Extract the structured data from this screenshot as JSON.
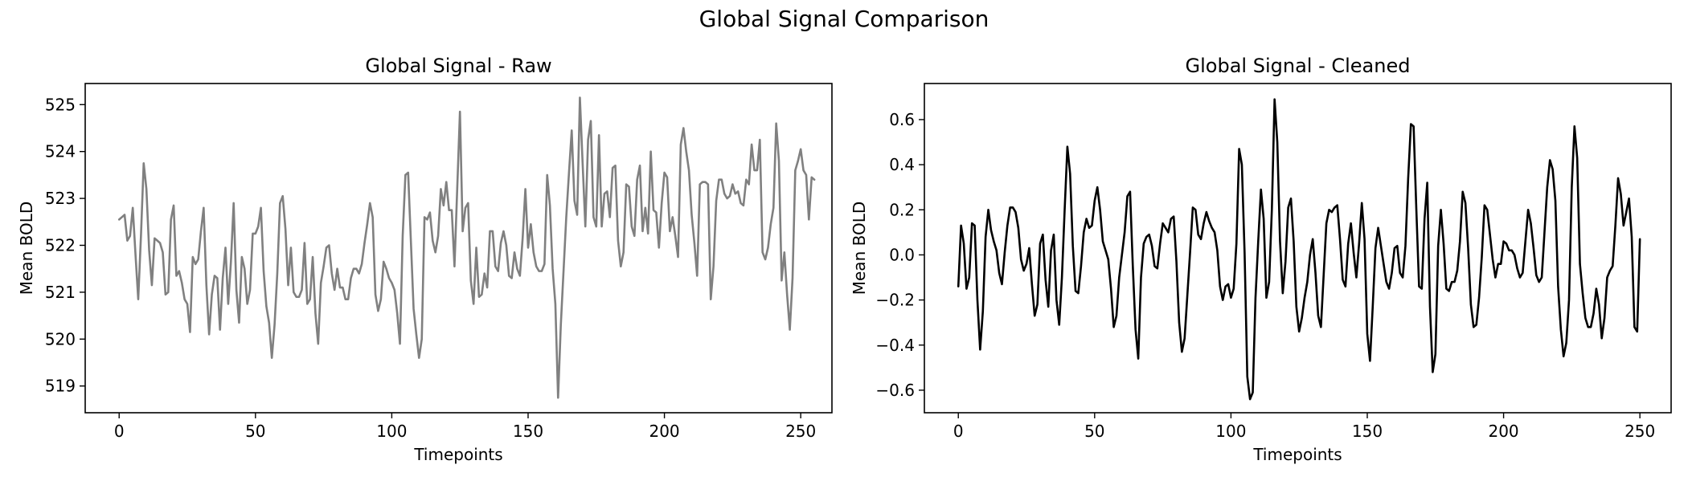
{
  "figure": {
    "title": "Global Signal Comparison"
  },
  "chart_data": [
    {
      "type": "line",
      "title": "Global Signal - Raw",
      "xlabel": "Timepoints",
      "ylabel": "Mean BOLD",
      "xlim": [
        -12.45,
        261.45
      ],
      "ylim": [
        518.43,
        525.45
      ],
      "xticks": [
        0,
        50,
        100,
        150,
        200,
        250
      ],
      "yticks": [
        519,
        520,
        521,
        522,
        523,
        524,
        525
      ],
      "color": "#808080",
      "x_start": 0,
      "x_step": 1,
      "values": [
        522.55,
        522.6,
        522.65,
        522.1,
        522.2,
        522.8,
        521.8,
        520.85,
        522.2,
        523.75,
        523.2,
        521.9,
        521.15,
        522.15,
        522.1,
        522.05,
        521.85,
        520.95,
        521.0,
        522.55,
        522.85,
        521.35,
        521.45,
        521.2,
        520.85,
        520.75,
        520.15,
        521.75,
        521.6,
        521.7,
        522.3,
        522.8,
        521.15,
        520.1,
        520.95,
        521.35,
        521.3,
        520.2,
        521.3,
        521.95,
        520.75,
        521.65,
        522.9,
        521.05,
        520.35,
        521.75,
        521.5,
        520.75,
        521.05,
        522.25,
        522.25,
        522.4,
        522.8,
        521.45,
        520.7,
        520.35,
        519.6,
        520.3,
        521.4,
        522.9,
        523.05,
        522.35,
        521.15,
        521.95,
        521.0,
        520.9,
        520.9,
        521.05,
        522.05,
        520.75,
        520.85,
        521.75,
        520.55,
        519.9,
        521.2,
        521.55,
        521.95,
        522.0,
        521.4,
        521.05,
        521.5,
        521.1,
        521.1,
        520.85,
        520.85,
        521.3,
        521.5,
        521.5,
        521.4,
        521.6,
        522.05,
        522.45,
        522.9,
        522.6,
        520.95,
        520.6,
        520.85,
        521.65,
        521.5,
        521.3,
        521.2,
        521.05,
        520.55,
        519.9,
        522.2,
        523.5,
        523.55,
        522.1,
        520.65,
        520.1,
        519.6,
        520.0,
        522.6,
        522.55,
        522.7,
        522.1,
        521.85,
        522.2,
        523.2,
        522.85,
        523.35,
        522.75,
        522.75,
        521.55,
        523.2,
        524.85,
        522.3,
        522.8,
        522.9,
        521.25,
        520.75,
        521.95,
        520.9,
        520.95,
        521.4,
        521.1,
        522.3,
        522.3,
        521.55,
        521.45,
        522.05,
        522.3,
        522.0,
        521.35,
        521.3,
        521.85,
        521.5,
        521.35,
        522.15,
        523.2,
        521.95,
        522.45,
        521.85,
        521.55,
        521.45,
        521.45,
        521.6,
        523.5,
        522.85,
        521.5,
        520.75,
        518.75,
        520.3,
        521.45,
        522.6,
        523.55,
        524.45,
        522.95,
        522.65,
        525.15,
        523.75,
        522.4,
        524.25,
        524.65,
        522.6,
        522.4,
        524.35,
        522.4,
        523.1,
        523.15,
        522.6,
        523.65,
        523.7,
        522.1,
        521.55,
        521.85,
        523.3,
        523.25,
        522.4,
        522.2,
        523.4,
        523.7,
        522.3,
        522.8,
        522.25,
        524.0,
        522.75,
        522.7,
        521.95,
        522.9,
        523.55,
        523.45,
        522.3,
        522.6,
        522.2,
        521.75,
        524.15,
        524.5,
        524.0,
        523.6,
        522.65,
        522.05,
        521.35,
        523.3,
        523.35,
        523.35,
        523.3,
        520.85,
        521.55,
        522.95,
        523.4,
        523.4,
        523.1,
        523.0,
        523.05,
        523.3,
        523.1,
        523.15,
        522.9,
        522.85,
        523.4,
        523.3,
        524.15,
        523.6,
        523.6,
        524.25,
        521.85,
        521.7,
        521.95,
        522.45,
        522.8,
        524.6,
        523.8,
        521.25,
        521.85,
        520.95,
        520.2,
        521.3,
        523.6,
        523.8,
        524.05,
        523.6,
        523.5,
        522.55,
        523.45,
        523.4
      ]
    },
    {
      "type": "line",
      "title": "Global Signal - Cleaned",
      "xlabel": "Timepoints",
      "ylabel": "Mean BOLD",
      "xlim": [
        -12.45,
        261.45
      ],
      "ylim": [
        -0.7,
        0.76
      ],
      "xticks": [
        0,
        50,
        100,
        150,
        200,
        250
      ],
      "yticks": [
        -0.6,
        -0.4,
        -0.2,
        0.0,
        0.2,
        0.4,
        0.6
      ],
      "ytick_labels": [
        "−0.6",
        "−0.4",
        "−0.2",
        "0.0",
        "0.2",
        "0.4",
        "0.6"
      ],
      "color": "#000000",
      "x_start": 0,
      "x_step": 1,
      "values": [
        -0.14,
        0.13,
        0.05,
        -0.15,
        -0.1,
        0.14,
        0.13,
        -0.2,
        -0.42,
        -0.25,
        0.08,
        0.2,
        0.11,
        0.06,
        0.02,
        -0.08,
        -0.13,
        0.01,
        0.13,
        0.21,
        0.21,
        0.19,
        0.12,
        -0.02,
        -0.07,
        -0.04,
        0.03,
        -0.13,
        -0.27,
        -0.22,
        0.05,
        0.09,
        -0.11,
        -0.23,
        0.02,
        0.09,
        -0.2,
        -0.31,
        -0.1,
        0.2,
        0.48,
        0.36,
        0.04,
        -0.16,
        -0.17,
        -0.05,
        0.1,
        0.16,
        0.12,
        0.13,
        0.24,
        0.3,
        0.2,
        0.06,
        0.02,
        -0.02,
        -0.15,
        -0.32,
        -0.27,
        -0.1,
        0.0,
        0.1,
        0.26,
        0.28,
        -0.05,
        -0.33,
        -0.46,
        -0.1,
        0.05,
        0.08,
        0.09,
        0.04,
        -0.05,
        -0.06,
        0.05,
        0.14,
        0.12,
        0.1,
        0.16,
        0.17,
        -0.03,
        -0.3,
        -0.43,
        -0.37,
        -0.18,
        0.01,
        0.21,
        0.2,
        0.09,
        0.07,
        0.14,
        0.19,
        0.15,
        0.12,
        0.1,
        0.02,
        -0.14,
        -0.2,
        -0.14,
        -0.13,
        -0.19,
        -0.15,
        0.05,
        0.47,
        0.4,
        0.01,
        -0.54,
        -0.64,
        -0.61,
        -0.19,
        0.06,
        0.29,
        0.16,
        -0.19,
        -0.12,
        0.2,
        0.69,
        0.5,
        0.06,
        -0.17,
        -0.03,
        0.21,
        0.25,
        0.06,
        -0.23,
        -0.34,
        -0.28,
        -0.19,
        -0.12,
        0.0,
        0.07,
        -0.08,
        -0.27,
        -0.32,
        -0.09,
        0.14,
        0.2,
        0.19,
        0.21,
        0.22,
        0.07,
        -0.11,
        -0.14,
        0.05,
        0.14,
        0.01,
        -0.1,
        0.05,
        0.23,
        0.07,
        -0.35,
        -0.47,
        -0.23,
        0.03,
        0.12,
        0.04,
        -0.04,
        -0.12,
        -0.15,
        -0.08,
        0.03,
        0.04,
        -0.08,
        -0.1,
        0.04,
        0.34,
        0.58,
        0.57,
        0.2,
        -0.14,
        -0.15,
        0.16,
        0.32,
        -0.23,
        -0.52,
        -0.44,
        0.04,
        0.2,
        0.05,
        -0.15,
        -0.16,
        -0.12,
        -0.12,
        -0.07,
        0.06,
        0.28,
        0.23,
        0.03,
        -0.22,
        -0.32,
        -0.31,
        -0.19,
        -0.01,
        0.22,
        0.2,
        0.09,
        -0.02,
        -0.1,
        -0.04,
        -0.04,
        0.06,
        0.05,
        0.02,
        0.02,
        0.0,
        -0.06,
        -0.1,
        -0.08,
        0.06,
        0.2,
        0.14,
        0.03,
        -0.09,
        -0.12,
        -0.1,
        0.1,
        0.3,
        0.42,
        0.38,
        0.24,
        -0.14,
        -0.33,
        -0.45,
        -0.39,
        -0.2,
        0.3,
        0.57,
        0.43,
        -0.04,
        -0.17,
        -0.28,
        -0.32,
        -0.32,
        -0.26,
        -0.15,
        -0.22,
        -0.37,
        -0.28,
        -0.1,
        -0.07,
        -0.05,
        0.13,
        0.34,
        0.27,
        0.13,
        0.19,
        0.25,
        0.08,
        -0.32,
        -0.34,
        0.07
      ]
    }
  ]
}
